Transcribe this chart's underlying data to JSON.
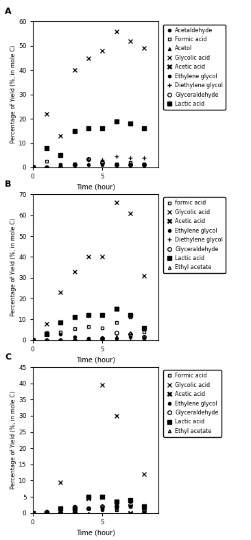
{
  "A": {
    "title": "A",
    "ylim": [
      0,
      60
    ],
    "yticks": [
      0,
      10,
      20,
      30,
      40,
      50,
      60
    ],
    "xlim": [
      0,
      9
    ],
    "xticks": [
      0,
      5
    ],
    "series": {
      "Acetaldehyde": {
        "marker": "o",
        "markersize": 3,
        "fillstyle": "full",
        "bold": false,
        "x": [
          0
        ],
        "y": [
          0
        ]
      },
      "Formic acid": {
        "marker": "s",
        "markersize": 3,
        "fillstyle": "none",
        "bold": false,
        "x": [
          1,
          2,
          3,
          4,
          5,
          6,
          7,
          8
        ],
        "y": [
          2.5,
          1.0,
          1.5,
          3.5,
          2.0,
          1.5,
          2.0,
          1.5
        ]
      },
      "Acetol": {
        "marker": "^",
        "markersize": 3,
        "fillstyle": "full",
        "bold": false,
        "x": [
          0
        ],
        "y": [
          0
        ]
      },
      "Glycolic acid": {
        "marker": "x",
        "markersize": 4,
        "fillstyle": "full",
        "bold": false,
        "x": [
          1,
          2,
          3,
          4,
          5,
          6,
          7,
          8
        ],
        "y": [
          22,
          13,
          40,
          45,
          48,
          56,
          52,
          49
        ]
      },
      "Acetic acid": {
        "marker": "x",
        "markersize": 4,
        "fillstyle": "full",
        "bold": true,
        "x": [
          0
        ],
        "y": [
          0
        ]
      },
      "Ethylene glycol": {
        "marker": "o",
        "markersize": 3,
        "fillstyle": "full",
        "bold": false,
        "x": [
          1,
          2,
          3,
          4,
          5,
          6,
          7,
          8
        ],
        "y": [
          0,
          1.0,
          1.0,
          1.0,
          1.0,
          1.0,
          1.0,
          1.0
        ]
      },
      "Diethylene glycol": {
        "marker": "+",
        "markersize": 4,
        "fillstyle": "full",
        "bold": false,
        "x": [
          1,
          2,
          3,
          4,
          5,
          6,
          7,
          8
        ],
        "y": [
          0,
          0,
          1.5,
          3.0,
          3.0,
          4.5,
          4.0,
          4.0
        ]
      },
      "Glyceraldehyde": {
        "marker": "o",
        "markersize": 4,
        "fillstyle": "none",
        "bold": false,
        "x": [
          1,
          2,
          3,
          4,
          5,
          6,
          7,
          8
        ],
        "y": [
          0,
          0,
          1.0,
          3.5,
          2.0,
          1.0,
          1.0,
          1.0
        ]
      },
      "Lactic acid": {
        "marker": "s",
        "markersize": 4,
        "fillstyle": "full",
        "bold": false,
        "x": [
          0,
          1,
          2,
          3,
          4,
          5,
          6,
          7,
          8
        ],
        "y": [
          0,
          8,
          5.0,
          15,
          16,
          16,
          19,
          18,
          16
        ]
      }
    },
    "legend_order": [
      "Acetaldehyde",
      "Formic acid",
      "Acetol",
      "Glycolic acid",
      "Acetic acid",
      "Ethylene glycol",
      "Diethylene glycol",
      "Glyceraldehyde",
      "Lactic acid"
    ]
  },
  "B": {
    "title": "B",
    "ylim": [
      0,
      70
    ],
    "yticks": [
      0,
      10,
      20,
      30,
      40,
      50,
      60,
      70
    ],
    "xlim": [
      0,
      9
    ],
    "xticks": [
      0,
      5
    ],
    "series": {
      "formic acid": {
        "marker": "s",
        "markersize": 3,
        "fillstyle": "none",
        "bold": false,
        "x": [
          1,
          2,
          3,
          4,
          5,
          6,
          7,
          8
        ],
        "y": [
          3.5,
          4.0,
          5.5,
          6.5,
          6.0,
          8.5,
          11.0,
          4.0
        ]
      },
      "Glycolic acid": {
        "marker": "x",
        "markersize": 4,
        "fillstyle": "full",
        "bold": false,
        "x": [
          1,
          2,
          3,
          4,
          5,
          6,
          7,
          8
        ],
        "y": [
          8,
          23,
          33,
          40,
          40,
          66,
          61,
          31
        ]
      },
      "Acetic acid": {
        "marker": "x",
        "markersize": 4,
        "fillstyle": "full",
        "bold": true,
        "x": [
          0
        ],
        "y": [
          0
        ]
      },
      "Ethylene glycol": {
        "marker": "o",
        "markersize": 3,
        "fillstyle": "full",
        "bold": false,
        "x": [
          1,
          2,
          3,
          4,
          5,
          6,
          7,
          8
        ],
        "y": [
          3.5,
          3.0,
          1.5,
          1.0,
          1.0,
          1.0,
          1.5,
          1.0
        ]
      },
      "Diethylene glycol": {
        "marker": "+",
        "markersize": 4,
        "fillstyle": "full",
        "bold": false,
        "x": [
          1,
          2,
          3,
          4,
          5,
          6,
          7,
          8
        ],
        "y": [
          0,
          0,
          0,
          0,
          1.0,
          0,
          0,
          0
        ]
      },
      "Glyceraldehyde": {
        "marker": "o",
        "markersize": 4,
        "fillstyle": "none",
        "bold": false,
        "x": [
          1,
          2,
          3,
          4,
          5,
          6,
          7,
          8
        ],
        "y": [
          0,
          0,
          0,
          0,
          1.0,
          3.5,
          3.0,
          1.5
        ]
      },
      "Lactic acid": {
        "marker": "s",
        "markersize": 4,
        "fillstyle": "full",
        "bold": false,
        "x": [
          0,
          1,
          2,
          3,
          4,
          5,
          6,
          7,
          8
        ],
        "y": [
          0,
          3.0,
          8.5,
          11,
          12,
          12,
          15,
          12,
          6
        ]
      },
      "Ethyl acetate": {
        "marker": "^",
        "markersize": 3,
        "fillstyle": "none",
        "bold": false,
        "x": [
          1,
          2,
          3,
          4,
          5,
          6,
          7,
          8
        ],
        "y": [
          0,
          0,
          0,
          0,
          1.0,
          1.5,
          3.5,
          1.5
        ]
      }
    },
    "legend_order": [
      "formic acid",
      "Glycolic acid",
      "Acetic acid",
      "Ethylene glycol",
      "Diethylene glycol",
      "Glyceraldehyde",
      "Lactic acid",
      "Ethyl acetate"
    ]
  },
  "C": {
    "title": "C",
    "ylim": [
      0,
      45
    ],
    "yticks": [
      0,
      5,
      10,
      15,
      20,
      25,
      30,
      35,
      40,
      45
    ],
    "xlim": [
      0,
      9
    ],
    "xticks": [
      0,
      5
    ],
    "series": {
      "Formic acid": {
        "marker": "s",
        "markersize": 3,
        "fillstyle": "none",
        "bold": false,
        "x": [
          1,
          2,
          3,
          4,
          5,
          6,
          7,
          8
        ],
        "y": [
          0,
          0,
          0,
          1.5,
          1.5,
          1.0,
          2.0,
          1.0
        ]
      },
      "Glycolic acid": {
        "marker": "x",
        "markersize": 4,
        "fillstyle": "full",
        "bold": false,
        "x": [
          1,
          2,
          3,
          4,
          5,
          6,
          7,
          8
        ],
        "y": [
          0,
          9.5,
          0,
          4.5,
          39.5,
          30,
          0,
          12
        ]
      },
      "Acetic acid": {
        "marker": "x",
        "markersize": 4,
        "fillstyle": "full",
        "bold": true,
        "x": [
          1,
          2,
          3,
          4,
          5,
          6,
          7,
          8
        ],
        "y": [
          0,
          0,
          0,
          4.5,
          5.0,
          2.5,
          0,
          0
        ]
      },
      "Ethylene glycol": {
        "marker": "o",
        "markersize": 3,
        "fillstyle": "full",
        "bold": false,
        "x": [
          1,
          2,
          3,
          4,
          5,
          6,
          7,
          8
        ],
        "y": [
          0.5,
          1.0,
          2.0,
          1.5,
          1.0,
          1.5,
          2.0,
          1.5
        ]
      },
      "Glyceraldehyde": {
        "marker": "o",
        "markersize": 4,
        "fillstyle": "none",
        "bold": false,
        "x": [
          1,
          2,
          3,
          4,
          5,
          6,
          7,
          8
        ],
        "y": [
          0,
          0,
          0,
          1.5,
          2.0,
          2.0,
          2.5,
          1.0
        ]
      },
      "Lactic acid": {
        "marker": "s",
        "markersize": 4,
        "fillstyle": "full",
        "bold": false,
        "x": [
          0,
          1,
          2,
          3,
          4,
          5,
          6,
          7,
          8
        ],
        "y": [
          0,
          0,
          1.5,
          1.5,
          5.0,
          5.0,
          3.5,
          4.0,
          2.0
        ]
      },
      "Ethyl acetate": {
        "marker": "^",
        "markersize": 3,
        "fillstyle": "none",
        "bold": false,
        "x": [
          1,
          2,
          3,
          4,
          5,
          6,
          7,
          8
        ],
        "y": [
          0,
          0,
          0,
          0,
          2.0,
          2.0,
          2.0,
          0
        ]
      }
    },
    "legend_order": [
      "Formic acid",
      "Glycolic acid",
      "Acetic acid",
      "Ethylene glycol",
      "Glyceraldehyde",
      "Lactic acid",
      "Ethyl acetate"
    ]
  },
  "ylabel": "Percentage of Yield (%, in mole C)",
  "xlabel": "Time (hour)",
  "fig_width": 3.66,
  "fig_height": 7.87,
  "dpi": 100
}
